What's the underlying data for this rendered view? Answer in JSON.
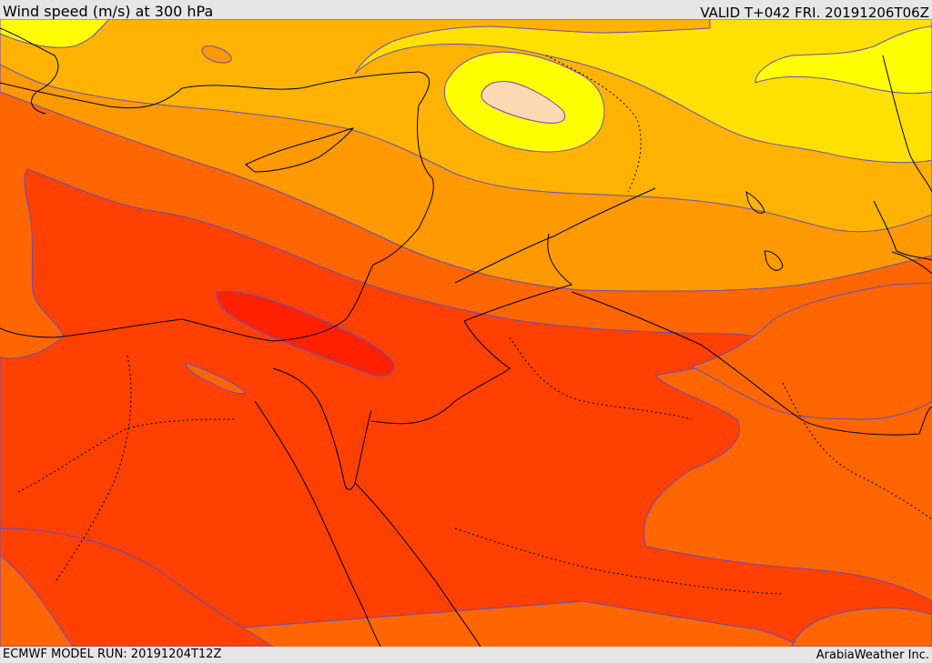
{
  "header": {
    "title": "Wind speed (m/s) at 300 hPa",
    "valid": "VALID T+042 FRI. 20191206T06Z"
  },
  "footer": {
    "model_run": "ECMWF MODEL RUN: 20191204T12Z",
    "credit": "ArabiaWeather Inc."
  },
  "map": {
    "field": "Wind speed",
    "units": "m/s",
    "level": "300 hPa",
    "colors": {
      "fill_slowest": "#fbc96a",
      "fill_20_25": "#ffff00",
      "fill_25_30": "#ffe000",
      "fill_30_35": "#ffb300",
      "fill_35_40": "#ff9900",
      "fill_40_45": "#ff6600",
      "fill_45_50": "#ff4000",
      "fill_50_55": "#ff2000",
      "fill_light_patch": "#fcd9b1",
      "contour_line": "#6a4cba",
      "coastline": "#000000",
      "borders": "#000000"
    }
  }
}
